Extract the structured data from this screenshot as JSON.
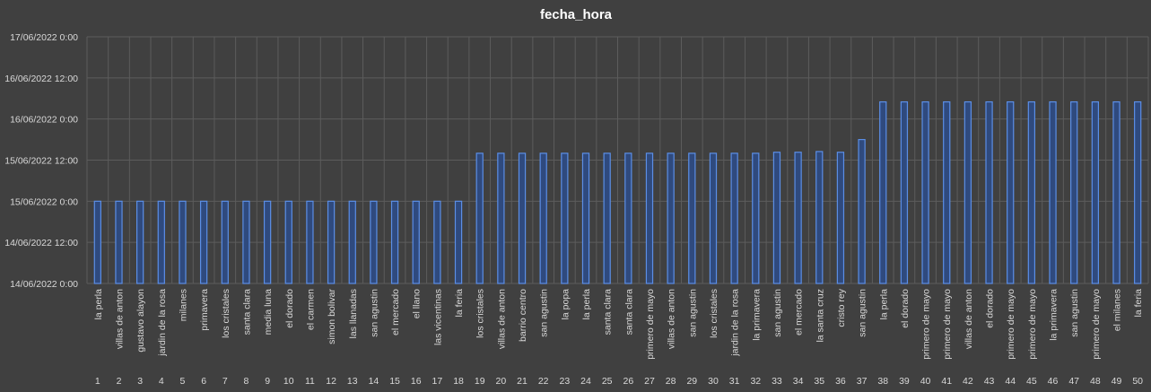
{
  "chart_data": {
    "type": "bar",
    "title": "fecha_hora",
    "xlabel": "",
    "ylabel": "",
    "y_unit": "hours",
    "y_tick_labels": [
      "14/06/2022 0:00",
      "14/06/2022 12:00",
      "15/06/2022 0:00",
      "15/06/2022 12:00",
      "16/06/2022 0:00",
      "16/06/2022 12:00",
      "17/06/2022 0:00"
    ],
    "ylim": [
      0,
      72
    ],
    "y_tick_step": 12,
    "grid": true,
    "categories": [
      "1",
      "2",
      "3",
      "4",
      "5",
      "6",
      "7",
      "8",
      "9",
      "10",
      "11",
      "12",
      "13",
      "14",
      "15",
      "16",
      "17",
      "18",
      "19",
      "20",
      "21",
      "22",
      "23",
      "24",
      "25",
      "26",
      "27",
      "28",
      "29",
      "30",
      "31",
      "32",
      "33",
      "34",
      "35",
      "36",
      "37",
      "38",
      "39",
      "40",
      "41",
      "42",
      "43",
      "44",
      "45",
      "46",
      "47",
      "48",
      "49",
      "50"
    ],
    "labels": [
      "la perla",
      "villas de anton",
      "gustavo alayon",
      "jardin de la rosa",
      "milanes",
      "primavera",
      "los cristales",
      "santa clara",
      "media luna",
      "el dorado",
      "el carmen",
      "simon bolivar",
      "las llanadas",
      "san agustin",
      "el mercado",
      "el llano",
      "las vicentinas",
      "la feria",
      "los cristales",
      "villas de anton",
      "barrio centro",
      "san agustin",
      "la popa",
      "la perla",
      "santa clara",
      "santa clara",
      "primero de mayo",
      "villas de anton",
      "san agustin",
      "los cristales",
      "jardin de la rosa",
      "la primavera",
      "san agustin",
      "el mercado",
      "la santa cruz",
      "cristo rey",
      "san agustin",
      "la perla",
      "el dorado",
      "primero de mayo",
      "primero de mayo",
      "villas de anton",
      "el dorado",
      "primero de mayo",
      "primero de mayo",
      "la primavera",
      "san agustin",
      "primero de mayo",
      "el milanes",
      "la feria"
    ],
    "values": [
      24,
      24,
      24,
      24,
      24,
      24,
      24,
      24,
      24,
      24,
      24,
      24,
      24,
      24,
      24,
      24,
      24,
      24,
      38,
      38,
      38,
      38,
      38,
      38,
      38,
      38,
      38,
      38,
      38,
      38,
      38,
      38,
      38.3,
      38.3,
      38.5,
      38.3,
      42,
      53,
      53,
      53,
      53,
      53,
      53,
      53,
      53,
      53,
      53,
      53,
      53,
      53
    ],
    "colors": {
      "background": "#404040",
      "bar_fill": "#2f4a7e",
      "bar_stroke": "#5b8ee6",
      "grid": "#5c5c5c",
      "text": "#d9d9d9"
    }
  }
}
